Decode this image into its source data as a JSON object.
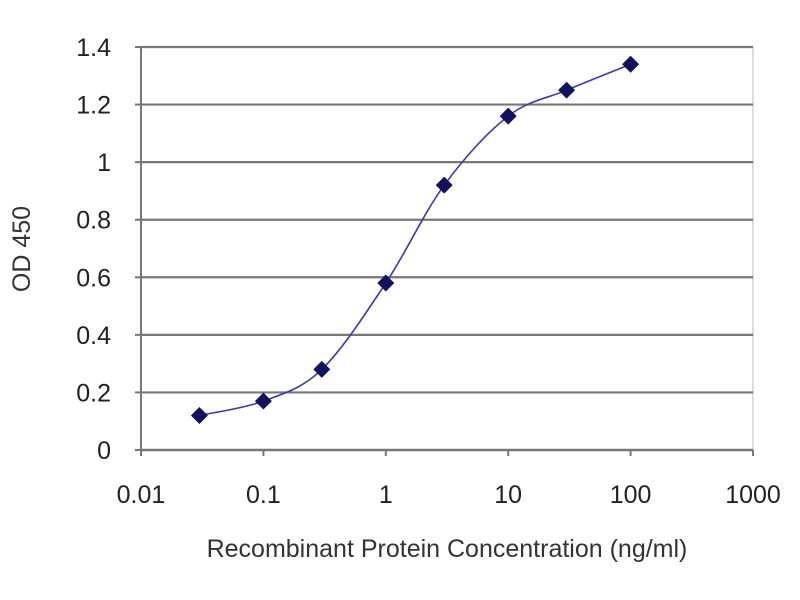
{
  "chart_data": {
    "type": "line",
    "title": "",
    "xlabel": "Recombinant Protein Concentration (ng/ml)",
    "ylabel": "OD 450",
    "x_scale": "log",
    "xlim": [
      0.01,
      1000
    ],
    "ylim": [
      0,
      1.4
    ],
    "x_ticks": [
      "0.01",
      "0.1",
      "1",
      "10",
      "100",
      "1000"
    ],
    "y_ticks": [
      "0",
      "0.2",
      "0.4",
      "0.6",
      "0.8",
      "1",
      "1.2",
      "1.4"
    ],
    "grid": "horizontal",
    "legend": "none",
    "smoothed": true,
    "series": [
      {
        "x": [
          0.03,
          0.1,
          0.3,
          1,
          3,
          10,
          30,
          100
        ],
        "y": [
          0.12,
          0.17,
          0.28,
          0.58,
          0.92,
          1.16,
          1.25,
          1.34
        ]
      }
    ],
    "colors": {
      "line": "#3b3ba6",
      "marker": "#12125e",
      "grid": "#777777"
    }
  }
}
